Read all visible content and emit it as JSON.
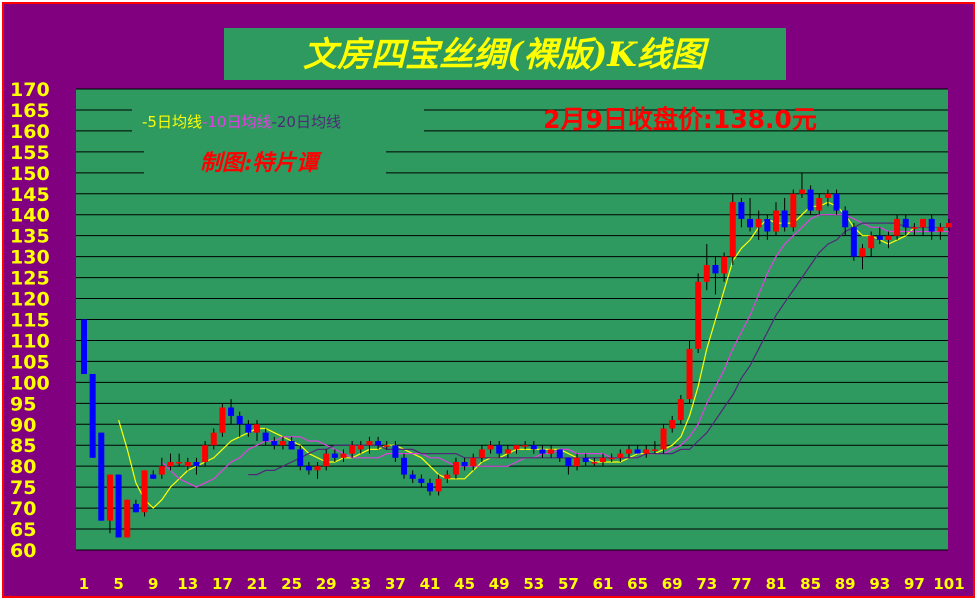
{
  "chart_data": {
    "type": "candlestick",
    "title": "文房四宝丝绸(裸版)K线图",
    "close_label": "2月9日收盘价:138.0元",
    "author_label": "制图:特片谭",
    "legend": [
      {
        "label": "-5日均线",
        "color": "#ffff00"
      },
      {
        "label": "-10日均线",
        "color": "#e040e0"
      },
      {
        "label": "-20日均线",
        "color": "#502878"
      }
    ],
    "ylim": [
      60,
      170
    ],
    "yticks": [
      "170",
      "165",
      "160",
      "155",
      "150",
      "145",
      "140",
      "135",
      "130",
      "125",
      "120",
      "115",
      "110",
      "105",
      "100",
      "95",
      "90",
      "85",
      "80",
      "75",
      "70",
      "65",
      "60"
    ],
    "xticks": [
      "1",
      "5",
      "9",
      "13",
      "17",
      "21",
      "25",
      "29",
      "33",
      "37",
      "41",
      "45",
      "49",
      "53",
      "57",
      "61",
      "65",
      "69",
      "73",
      "77",
      "81",
      "85",
      "89",
      "93",
      "97",
      "101"
    ],
    "up_color": "#ff0000",
    "down_color": "#0000ff",
    "ohlc": [
      [
        115,
        115,
        102,
        102
      ],
      [
        102,
        102,
        82,
        82
      ],
      [
        88,
        88,
        67,
        67
      ],
      [
        67,
        78,
        64,
        78
      ],
      [
        78,
        78,
        63,
        63
      ],
      [
        63,
        72,
        63,
        72
      ],
      [
        71,
        72,
        69,
        69
      ],
      [
        69,
        79,
        68,
        79
      ],
      [
        78,
        79,
        77,
        77
      ],
      [
        78,
        82,
        77,
        80
      ],
      [
        80,
        83,
        79,
        81
      ],
      [
        81,
        83,
        80,
        81
      ],
      [
        80,
        82,
        79,
        81
      ],
      [
        81,
        82,
        78,
        80
      ],
      [
        81,
        86,
        80,
        85
      ],
      [
        85,
        89,
        84,
        88
      ],
      [
        88,
        95,
        87,
        94
      ],
      [
        94,
        96,
        90,
        92
      ],
      [
        92,
        93,
        87,
        90
      ],
      [
        90,
        91,
        87,
        88
      ],
      [
        88,
        91,
        86,
        90
      ],
      [
        88,
        89,
        85,
        86
      ],
      [
        86,
        87,
        84,
        85
      ],
      [
        85,
        87,
        84,
        86
      ],
      [
        86,
        87,
        84,
        84
      ],
      [
        84,
        85,
        79,
        80
      ],
      [
        80,
        81,
        78,
        79
      ],
      [
        79,
        81,
        77,
        80
      ],
      [
        80,
        84,
        79,
        83
      ],
      [
        83,
        84,
        81,
        82
      ],
      [
        82,
        84,
        81,
        83
      ],
      [
        83,
        86,
        82,
        85
      ],
      [
        84,
        86,
        83,
        85
      ],
      [
        85,
        87,
        83,
        86
      ],
      [
        86,
        87,
        84,
        85
      ],
      [
        85,
        86,
        84,
        85
      ],
      [
        85,
        86,
        81,
        82
      ],
      [
        82,
        83,
        77,
        78
      ],
      [
        78,
        79,
        76,
        77
      ],
      [
        77,
        78,
        75,
        76
      ],
      [
        76,
        77,
        73,
        74
      ],
      [
        74,
        78,
        73,
        77
      ],
      [
        77,
        79,
        76,
        78
      ],
      [
        78,
        82,
        77,
        81
      ],
      [
        81,
        82,
        79,
        80
      ],
      [
        80,
        83,
        79,
        82
      ],
      [
        82,
        85,
        81,
        84
      ],
      [
        84,
        86,
        83,
        85
      ],
      [
        85,
        86,
        82,
        83
      ],
      [
        83,
        85,
        82,
        84
      ],
      [
        84,
        85,
        83,
        85
      ],
      [
        85,
        86,
        84,
        85
      ],
      [
        85,
        86,
        83,
        84
      ],
      [
        84,
        85,
        82,
        83
      ],
      [
        83,
        85,
        82,
        84
      ],
      [
        84,
        84,
        81,
        82
      ],
      [
        82,
        82,
        78,
        80
      ],
      [
        80,
        83,
        79,
        82
      ],
      [
        82,
        83,
        80,
        81
      ],
      [
        81,
        82,
        80,
        81
      ],
      [
        81,
        83,
        80,
        82
      ],
      [
        82,
        83,
        81,
        82
      ],
      [
        82,
        84,
        81,
        83
      ],
      [
        83,
        85,
        82,
        84
      ],
      [
        84,
        85,
        83,
        83
      ],
      [
        83,
        85,
        82,
        84
      ],
      [
        84,
        86,
        83,
        84
      ],
      [
        84,
        90,
        83,
        89
      ],
      [
        89,
        92,
        88,
        91
      ],
      [
        91,
        97,
        90,
        96
      ],
      [
        96,
        110,
        95,
        108
      ],
      [
        108,
        126,
        107,
        124
      ],
      [
        124,
        133,
        122,
        128
      ],
      [
        128,
        130,
        121,
        126
      ],
      [
        126,
        131,
        124,
        130
      ],
      [
        130,
        145,
        128,
        143
      ],
      [
        143,
        144,
        137,
        139
      ],
      [
        139,
        144,
        136,
        137
      ],
      [
        137,
        141,
        134,
        139
      ],
      [
        139,
        140,
        134,
        136
      ],
      [
        136,
        143,
        135,
        141
      ],
      [
        141,
        144,
        136,
        137
      ],
      [
        137,
        146,
        136,
        145
      ],
      [
        145,
        150,
        144,
        146
      ],
      [
        146,
        147,
        140,
        141
      ],
      [
        141,
        145,
        140,
        144
      ],
      [
        144,
        146,
        142,
        145
      ],
      [
        145,
        146,
        140,
        141
      ],
      [
        141,
        142,
        135,
        137
      ],
      [
        137,
        138,
        129,
        130
      ],
      [
        130,
        133,
        127,
        132
      ],
      [
        132,
        136,
        130,
        135
      ],
      [
        135,
        137,
        133,
        134
      ],
      [
        134,
        136,
        132,
        135
      ],
      [
        135,
        140,
        134,
        139
      ],
      [
        139,
        140,
        135,
        137
      ],
      [
        137,
        138,
        135,
        137
      ],
      [
        137,
        139,
        135,
        139
      ],
      [
        139,
        140,
        134,
        136
      ],
      [
        136,
        138,
        134,
        137
      ],
      [
        137,
        139,
        136,
        138
      ]
    ],
    "ma5": [
      null,
      null,
      null,
      null,
      91,
      84,
      76,
      72,
      70,
      72,
      75,
      77,
      79,
      80,
      81,
      82,
      84,
      86,
      87,
      88,
      89,
      89,
      88,
      87,
      86,
      85,
      83,
      82,
      81,
      81,
      82,
      82,
      83,
      84,
      84,
      85,
      85,
      84,
      83,
      82,
      80,
      78,
      77,
      77,
      77,
      79,
      81,
      82,
      82,
      83,
      84,
      84,
      84,
      84,
      84,
      84,
      83,
      82,
      82,
      81,
      81,
      81,
      81,
      82,
      83,
      83,
      83,
      84,
      85,
      87,
      92,
      99,
      108,
      115,
      122,
      129,
      132,
      134,
      137,
      139,
      138,
      138,
      138,
      140,
      142,
      142,
      143,
      142,
      140,
      137,
      135,
      135,
      134,
      133,
      134,
      135,
      137,
      137,
      137,
      137,
      137
    ],
    "ma10": [
      null,
      null,
      null,
      null,
      null,
      null,
      null,
      null,
      null,
      81,
      79,
      77,
      76,
      75,
      76,
      77,
      79,
      81,
      82,
      84,
      85,
      86,
      86,
      87,
      87,
      87,
      86,
      86,
      85,
      84,
      83,
      82,
      82,
      82,
      82,
      83,
      83,
      83,
      83,
      83,
      82,
      82,
      81,
      80,
      80,
      80,
      80,
      80,
      80,
      80,
      81,
      82,
      82,
      83,
      83,
      84,
      84,
      83,
      83,
      83,
      83,
      82,
      82,
      82,
      82,
      83,
      83,
      83,
      84,
      85,
      87,
      90,
      95,
      99,
      103,
      108,
      112,
      116,
      121,
      126,
      130,
      133,
      135,
      137,
      139,
      140,
      140,
      140,
      140,
      139,
      138,
      137,
      137,
      136,
      136,
      136,
      136,
      136,
      136,
      136,
      136
    ],
    "ma20": [
      null,
      null,
      null,
      null,
      null,
      null,
      null,
      null,
      null,
      null,
      null,
      null,
      null,
      null,
      null,
      null,
      null,
      null,
      null,
      78,
      78,
      79,
      79,
      80,
      81,
      82,
      83,
      84,
      84,
      85,
      85,
      85,
      85,
      85,
      85,
      84,
      84,
      84,
      84,
      83,
      83,
      83,
      83,
      83,
      82,
      82,
      82,
      82,
      82,
      82,
      82,
      82,
      82,
      82,
      82,
      82,
      82,
      82,
      82,
      82,
      82,
      82,
      82,
      82,
      82,
      83,
      83,
      83,
      83,
      84,
      84,
      86,
      88,
      91,
      94,
      97,
      101,
      104,
      108,
      112,
      116,
      119,
      122,
      125,
      128,
      131,
      133,
      134,
      136,
      137,
      138,
      138,
      138,
      138,
      138,
      137,
      137,
      137,
      137,
      137,
      137
    ]
  }
}
